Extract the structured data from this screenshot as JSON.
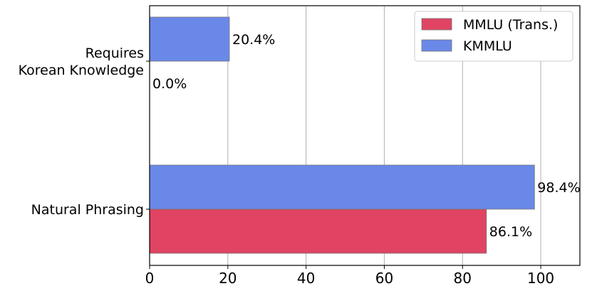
{
  "chart_data": {
    "type": "bar",
    "orientation": "horizontal",
    "categories": [
      "Requires\nKorean Knowledge",
      "Natural Phrasing"
    ],
    "series": [
      {
        "name": "MMLU (Trans.)",
        "values": [
          0.0,
          86.1
        ],
        "color": "#e04462",
        "labels": [
          "0.0%",
          "86.1%"
        ]
      },
      {
        "name": "KMMLU",
        "values": [
          20.4,
          98.4
        ],
        "color": "#6a88e8",
        "labels": [
          "20.4%",
          "98.4%"
        ]
      }
    ],
    "xlim": [
      0,
      110
    ],
    "xticks": [
      0,
      20,
      40,
      60,
      80,
      100
    ],
    "grid": "x",
    "legend": "top-right",
    "title": "",
    "xlabel": "",
    "ylabel": ""
  }
}
